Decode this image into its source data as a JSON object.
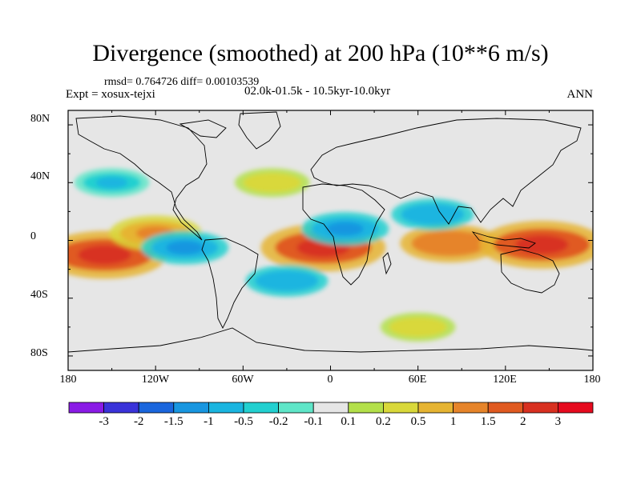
{
  "title": "Divergence (smoothed) at 200 hPa (10**6 m/s)",
  "stats": "rmsd= 0.764726 diff= 0.00103539",
  "experiment": "Expt = xosux-tejxi",
  "period": "02.0k-01.5k - 10.5kyr-10.0kyr",
  "season": "ANN",
  "lat_ticks": [
    "80N",
    "40N",
    "0",
    "40S",
    "80S"
  ],
  "lon_ticks": [
    "180",
    "120W",
    "60W",
    "0",
    "60E",
    "120E",
    "180"
  ],
  "colorbar": {
    "labels": [
      "-3",
      "-2",
      "-1.5",
      "-1",
      "-0.5",
      "-0.2",
      "-0.1",
      "0.1",
      "0.2",
      "0.5",
      "1",
      "1.5",
      "2",
      "3"
    ],
    "colors": [
      "#8a1be6",
      "#3a33d9",
      "#1a66dd",
      "#1896e0",
      "#1ab5e0",
      "#22d0d0",
      "#5fe6c8",
      "#e6e6e6",
      "#b3e04a",
      "#d9d83a",
      "#e6b432",
      "#e6842a",
      "#e05a20",
      "#d83020",
      "#e60a1e"
    ]
  },
  "chart_data": {
    "type": "heatmap",
    "title": "Divergence (smoothed) at 200 hPa (10**6 m/s)",
    "xlabel": "",
    "ylabel": "",
    "xlim": [
      -180,
      180
    ],
    "ylim": [
      -90,
      90
    ],
    "units": "10**6 m/s",
    "anomaly_features": [
      {
        "name": "central-pacific-south",
        "lon": -155,
        "lat": -10,
        "value": 2.5
      },
      {
        "name": "south-atlantic-tropics",
        "lon": -5,
        "lat": -5,
        "value": 2.5
      },
      {
        "name": "indian-ocean",
        "lon": 82,
        "lat": -2,
        "value": 1.5
      },
      {
        "name": "maritime-continent",
        "lon": 145,
        "lat": -3,
        "value": 2.5
      },
      {
        "name": "east-pacific-tropics",
        "lon": -120,
        "lat": 5,
        "value": 1.2
      },
      {
        "name": "east-pacific-equatorial",
        "lon": -100,
        "lat": -5,
        "value": -1.0
      },
      {
        "name": "equatorial-africa",
        "lon": 10,
        "lat": 8,
        "value": -1.0
      },
      {
        "name": "arabian-sea",
        "lon": 70,
        "lat": 18,
        "value": -0.8
      },
      {
        "name": "south-atlantic",
        "lon": -30,
        "lat": -28,
        "value": -0.8
      },
      {
        "name": "north-atlantic",
        "lon": -40,
        "lat": 40,
        "value": 0.5
      },
      {
        "name": "north-pacific",
        "lon": -150,
        "lat": 40,
        "value": -0.5
      },
      {
        "name": "southern-ocean-indian",
        "lon": 60,
        "lat": -60,
        "value": 0.5
      }
    ]
  }
}
